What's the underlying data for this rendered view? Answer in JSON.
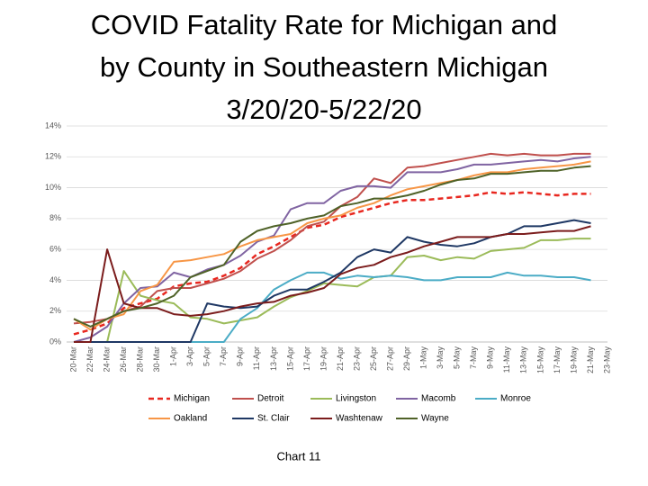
{
  "chart_data": {
    "type": "line",
    "title": "COVID Fatality Rate for Michigan and by County in Southeastern Michigan 3/20/20-5/22/20",
    "title_lines": [
      "COVID Fatality Rate for Michigan and",
      "by County in Southeastern Michigan",
      "3/20/20-5/22/20"
    ],
    "caption": "Chart 11",
    "categories": [
      "20-Mar",
      "22-Mar",
      "24-Mar",
      "26-Mar",
      "28-Mar",
      "30-Mar",
      "1-Apr",
      "3-Apr",
      "5-Apr",
      "7-Apr",
      "9-Apr",
      "11-Apr",
      "13-Apr",
      "15-Apr",
      "17-Apr",
      "19-Apr",
      "21-Apr",
      "23-Apr",
      "25-Apr",
      "27-Apr",
      "29-Apr",
      "1-May",
      "3-May",
      "5-May",
      "7-May",
      "9-May",
      "11-May",
      "13-May",
      "15-May",
      "17-May",
      "19-May",
      "21-May",
      "23-May"
    ],
    "ylim": [
      0,
      14
    ],
    "yticks": [
      {
        "value": 0,
        "label": "0%"
      },
      {
        "value": 2,
        "label": "2%"
      },
      {
        "value": 4,
        "label": "4%"
      },
      {
        "value": 6,
        "label": "6%"
      },
      {
        "value": 8,
        "label": "8%"
      },
      {
        "value": 10,
        "label": "10%"
      },
      {
        "value": 12,
        "label": "12%"
      },
      {
        "value": 14,
        "label": "14%"
      }
    ],
    "grid": true,
    "legend": "bottom",
    "series": [
      {
        "name": "Michigan",
        "color": "#e8271f",
        "dashed": true,
        "values": [
          0.5,
          0.8,
          1.2,
          2.2,
          2.5,
          2.8,
          3.6,
          3.8,
          3.9,
          4.3,
          4.8,
          5.7,
          6.2,
          6.8,
          7.4,
          7.6,
          8.1,
          8.4,
          8.7,
          9.0,
          9.2,
          9.2,
          9.3,
          9.4,
          9.5,
          9.7,
          9.6,
          9.7,
          9.6,
          9.5,
          9.6,
          9.6,
          null
        ]
      },
      {
        "name": "Detroit",
        "color": "#c0504d",
        "values": [
          1.2,
          1.3,
          1.5,
          2.0,
          2.3,
          3.3,
          3.5,
          3.5,
          3.8,
          4.1,
          4.6,
          5.4,
          5.9,
          6.6,
          7.5,
          7.8,
          8.8,
          9.4,
          10.6,
          10.3,
          11.3,
          11.4,
          11.6,
          11.8,
          12.0,
          12.2,
          12.1,
          12.2,
          12.1,
          12.1,
          12.2,
          12.2,
          null
        ]
      },
      {
        "name": "Livingston",
        "color": "#9bbb59",
        "values": [
          0,
          0,
          0,
          4.6,
          3.0,
          2.7,
          2.5,
          1.6,
          1.5,
          1.2,
          1.4,
          1.6,
          2.3,
          2.9,
          3.3,
          3.8,
          3.7,
          3.6,
          4.2,
          4.3,
          5.5,
          5.6,
          5.3,
          5.5,
          5.4,
          5.9,
          6.0,
          6.1,
          6.6,
          6.6,
          6.7,
          6.7,
          null
        ]
      },
      {
        "name": "Macomb",
        "color": "#8064a2",
        "values": [
          0,
          0.3,
          1.0,
          2.5,
          3.5,
          3.6,
          4.5,
          4.2,
          4.7,
          5.0,
          5.6,
          6.5,
          6.9,
          8.6,
          9.0,
          9.0,
          9.8,
          10.1,
          10.1,
          10.0,
          11.0,
          11.0,
          11.0,
          11.2,
          11.5,
          11.5,
          11.6,
          11.7,
          11.8,
          11.7,
          11.9,
          12.0,
          null
        ]
      },
      {
        "name": "Monroe",
        "color": "#4bacc6",
        "values": [
          0,
          0,
          0,
          0,
          0,
          0,
          0,
          0,
          0,
          0,
          1.5,
          2.2,
          3.4,
          4.0,
          4.5,
          4.5,
          4.1,
          4.3,
          4.2,
          4.3,
          4.2,
          4.0,
          4.0,
          4.2,
          4.2,
          4.2,
          4.5,
          4.3,
          4.3,
          4.2,
          4.2,
          4.0,
          null
        ]
      },
      {
        "name": "Oakland",
        "color": "#f79646",
        "values": [
          1.5,
          0.8,
          1.5,
          1.8,
          3.3,
          3.7,
          5.2,
          5.3,
          5.5,
          5.7,
          6.2,
          6.6,
          6.8,
          7.0,
          7.7,
          8.0,
          8.2,
          8.7,
          9.0,
          9.5,
          9.9,
          10.1,
          10.3,
          10.5,
          10.8,
          11.0,
          11.0,
          11.2,
          11.3,
          11.4,
          11.5,
          11.7,
          null
        ]
      },
      {
        "name": "St. Clair",
        "color": "#1f3864",
        "values": [
          0,
          0,
          0,
          0,
          0,
          0,
          0,
          0,
          2.5,
          2.3,
          2.2,
          2.3,
          3.0,
          3.4,
          3.4,
          3.9,
          4.5,
          5.5,
          6.0,
          5.8,
          6.8,
          6.5,
          6.3,
          6.2,
          6.4,
          6.8,
          7.0,
          7.5,
          7.5,
          7.7,
          7.9,
          7.7,
          null
        ]
      },
      {
        "name": "Washtenaw",
        "color": "#7b1c1c",
        "values": [
          0,
          0,
          6.0,
          2.5,
          2.2,
          2.2,
          1.8,
          1.7,
          1.8,
          2.0,
          2.3,
          2.5,
          2.6,
          3.0,
          3.2,
          3.5,
          4.4,
          4.8,
          5.0,
          5.5,
          5.8,
          6.2,
          6.5,
          6.8,
          6.8,
          6.8,
          7.0,
          7.0,
          7.1,
          7.2,
          7.2,
          7.5,
          null
        ]
      },
      {
        "name": "Wayne",
        "color": "#4f6228",
        "values": [
          1.5,
          1.0,
          1.5,
          2.0,
          2.2,
          2.5,
          3.0,
          4.2,
          4.6,
          5.0,
          6.5,
          7.2,
          7.5,
          7.7,
          8.0,
          8.2,
          8.8,
          9.0,
          9.3,
          9.3,
          9.5,
          9.8,
          10.2,
          10.5,
          10.6,
          10.9,
          10.9,
          11.0,
          11.1,
          11.1,
          11.3,
          11.4,
          null
        ]
      }
    ]
  }
}
